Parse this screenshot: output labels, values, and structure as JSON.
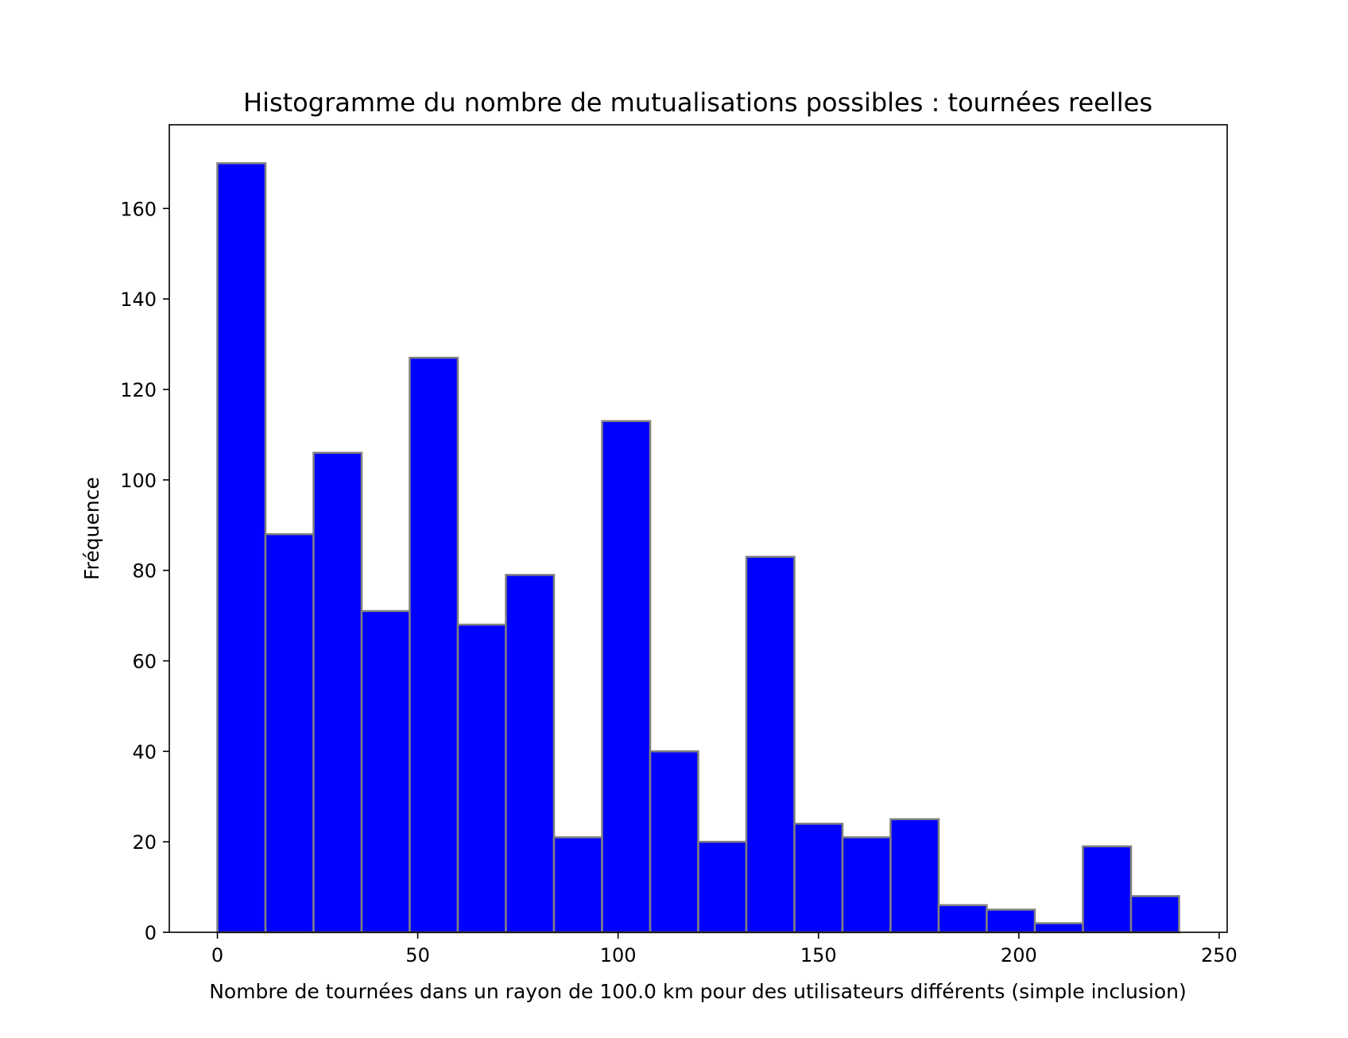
{
  "chart_data": {
    "type": "bar",
    "title": "Histogramme du nombre de mutualisations possibles : tournées reelles",
    "xlabel": "Nombre de tournées dans un rayon de 100.0 km pour des utilisateurs différents (simple inclusion)",
    "ylabel": "Fréquence",
    "xlim": [
      -12,
      252
    ],
    "ylim": [
      0,
      178.5
    ],
    "x_ticks": [
      "0",
      "50",
      "100",
      "150",
      "200",
      "250"
    ],
    "y_ticks": [
      "0",
      "20",
      "40",
      "60",
      "80",
      "100",
      "120",
      "140",
      "160"
    ],
    "bin_edges": [
      0,
      12,
      24,
      36,
      48,
      60,
      72,
      84,
      96,
      108,
      120,
      132,
      144,
      156,
      168,
      180,
      192,
      204,
      216,
      228,
      240
    ],
    "values": [
      170,
      88,
      106,
      71,
      127,
      68,
      79,
      21,
      113,
      40,
      20,
      83,
      24,
      21,
      25,
      6,
      5,
      2,
      19,
      8
    ],
    "grid": false,
    "legend": false,
    "colors": {
      "bar_fill": "#0000ff",
      "bar_edge": "#808080",
      "axes": "#000000",
      "background": "#ffffff"
    }
  }
}
